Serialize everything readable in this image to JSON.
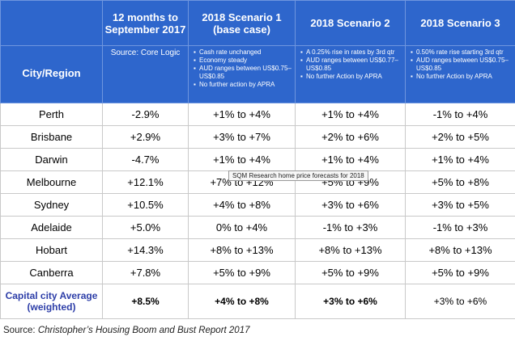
{
  "headers": {
    "col_city": "City/Region",
    "col_last12": "12 months to September 2017",
    "col_s1": "2018 Scenario 1 (base case)",
    "col_s2": "2018 Scenario 2",
    "col_s3": "2018 Scenario 3",
    "source_core": "Source: Core Logic"
  },
  "scenario_notes": {
    "s1": [
      "Cash rate unchanged",
      "Economy steady",
      "AUD ranges between US$0.75–US$0.85",
      "No further action by APRA"
    ],
    "s2": [
      "A 0.25% rise in rates by 3rd qtr",
      "AUD ranges between US$0.77–US$0.85",
      "No further Action by APRA"
    ],
    "s3": [
      "0.50% rate rise starting 3rd qtr",
      "AUD ranges between US$0.75–US$0.85",
      "No further Action by APRA"
    ]
  },
  "rows": [
    {
      "city": "Perth",
      "last12": "-2.9%",
      "s1": "+1% to +4%",
      "s2": "+1% to +4%",
      "s3": "-1% to +4%"
    },
    {
      "city": "Brisbane",
      "last12": "+2.9%",
      "s1": "+3% to +7%",
      "s2": "+2% to +6%",
      "s3": "+2% to +5%"
    },
    {
      "city": "Darwin",
      "last12": "-4.7%",
      "s1": "+1% to +4%",
      "s2": "+1% to +4%",
      "s3": "+1% to +4%"
    },
    {
      "city": "Melbourne",
      "last12": "+12.1%",
      "s1": "+7% to +12%",
      "s2": "+5% to +9%",
      "s3": "+5% to +8%"
    },
    {
      "city": "Sydney",
      "last12": "+10.5%",
      "s1": "+4% to +8%",
      "s2": "+3% to +6%",
      "s3": "+3% to +5%"
    },
    {
      "city": "Adelaide",
      "last12": "+5.0%",
      "s1": "0% to +4%",
      "s2": "-1% to +3%",
      "s3": "-1% to +3%"
    },
    {
      "city": "Hobart",
      "last12": "+14.3%",
      "s1": "+8% to +13%",
      "s2": "+8% to +13%",
      "s3": "+8% to +13%"
    },
    {
      "city": "Canberra",
      "last12": "+7.8%",
      "s1": "+5% to +9%",
      "s2": "+5% to +9%",
      "s3": "+5% to +9%"
    }
  ],
  "average": {
    "city": "Capital city Average (weighted)",
    "last12": "+8.5%",
    "s1": "+4% to +8%",
    "s2": "+3% to +6%",
    "s3": "+3% to +6%"
  },
  "tooltip": "SQM Research home price forecasts for 2018",
  "caption_prefix": "Source: ",
  "caption_title": "Christopher’s Housing Boom and Bust Report 2017",
  "colors": {
    "header_bg": "#2e66cc",
    "average_city_text": "#2d3ea8"
  }
}
